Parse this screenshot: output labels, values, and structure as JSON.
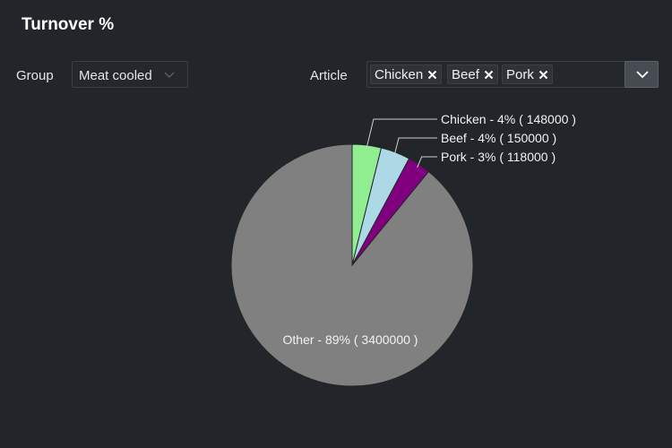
{
  "header": {
    "title": "Turnover %"
  },
  "filters": {
    "group_label": "Group",
    "group_value": "Meat cooled",
    "article_label": "Article",
    "article_chips": [
      "Chicken",
      "Beef",
      "Pork"
    ]
  },
  "colors": {
    "background": "#222529",
    "chicken": "#90ee90",
    "beef": "#add8e6",
    "pork": "#800080",
    "other": "#808080"
  },
  "icons": {
    "chip_remove": "close-icon",
    "group_select": "chevron-down-icon",
    "article_dropdown": "chevron-down-icon"
  },
  "chart_data": {
    "type": "pie",
    "title": "",
    "slices": [
      {
        "name": "Chicken",
        "value": 148000,
        "percent_label": "4%",
        "label": "Chicken - 4% ( 148000 )",
        "color": "#90ee90"
      },
      {
        "name": "Beef",
        "value": 150000,
        "percent_label": "4%",
        "label": "Beef - 4% ( 150000 )",
        "color": "#add8e6"
      },
      {
        "name": "Pork",
        "value": 118000,
        "percent_label": "3%",
        "label": "Pork - 3% ( 118000 )",
        "color": "#800080"
      },
      {
        "name": "Other",
        "value": 3400000,
        "percent_label": "89%",
        "label": "Other - 89% ( 3400000 )",
        "color": "#808080"
      }
    ]
  }
}
